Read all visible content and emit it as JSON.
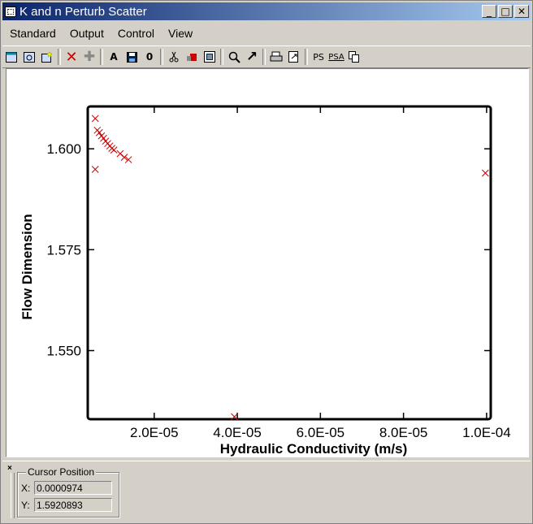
{
  "window": {
    "title": "K and n Perturb Scatter",
    "buttons": {
      "minimize": "_",
      "maximize": "□",
      "close": "✕"
    }
  },
  "menu": [
    "Standard",
    "Output",
    "Control",
    "View"
  ],
  "toolbar": {
    "tools": [
      {
        "name": "new-window-icon",
        "glyph": ""
      },
      {
        "name": "refresh-icon",
        "glyph": ""
      },
      {
        "name": "new-plot-icon",
        "glyph": ""
      },
      {
        "sep": true
      },
      {
        "name": "delete-icon",
        "glyph": "✕"
      },
      {
        "name": "add-icon",
        "glyph": "✚"
      },
      {
        "sep": true
      },
      {
        "name": "text-icon",
        "glyph": "A"
      },
      {
        "name": "save-icon",
        "glyph": ""
      },
      {
        "name": "zero-icon",
        "glyph": "0"
      },
      {
        "sep": true
      },
      {
        "name": "cut-icon",
        "glyph": ""
      },
      {
        "name": "erase-icon",
        "glyph": ""
      },
      {
        "name": "properties-icon",
        "glyph": ""
      },
      {
        "sep": true
      },
      {
        "name": "zoom-icon",
        "glyph": ""
      },
      {
        "name": "arrow-icon",
        "glyph": "↗"
      },
      {
        "sep": true
      },
      {
        "name": "print-icon",
        "glyph": ""
      },
      {
        "name": "export-icon",
        "glyph": ""
      },
      {
        "sep": true
      },
      {
        "name": "ps-icon",
        "glyph": "PS"
      },
      {
        "name": "psa-icon",
        "glyph": "PSA"
      },
      {
        "name": "copy-icon",
        "glyph": ""
      }
    ]
  },
  "colors": {
    "marker": "#cc0000",
    "title_bar_start": "#0a246a",
    "title_bar_end": "#a6caf0"
  },
  "chart_data": {
    "type": "scatter",
    "title": "",
    "xlabel": "Hydraulic  Conductivity  (m/s)",
    "ylabel": "Flow  Dimension",
    "xlim": [
      4e-06,
      0.000101
    ],
    "ylim": [
      1.533,
      1.6105
    ],
    "xticks": [
      {
        "value": 2e-05,
        "label": "2.0E-05"
      },
      {
        "value": 4e-05,
        "label": "4.0E-05"
      },
      {
        "value": 6e-05,
        "label": "6.0E-05"
      },
      {
        "value": 8e-05,
        "label": "8.0E-05"
      },
      {
        "value": 0.0001,
        "label": "1.0E-04"
      }
    ],
    "yticks": [
      {
        "value": 1.55,
        "label": "1.550"
      },
      {
        "value": 1.575,
        "label": "1.575"
      },
      {
        "value": 1.6,
        "label": "1.600"
      }
    ],
    "grid": false,
    "marker": "x",
    "points": [
      {
        "x": 5.8e-06,
        "y": 1.6075
      },
      {
        "x": 6.3e-06,
        "y": 1.6046
      },
      {
        "x": 6.8e-06,
        "y": 1.604
      },
      {
        "x": 7.3e-06,
        "y": 1.6032
      },
      {
        "x": 7.8e-06,
        "y": 1.6026
      },
      {
        "x": 8.3e-06,
        "y": 1.6019
      },
      {
        "x": 8.8e-06,
        "y": 1.6013
      },
      {
        "x": 9.3e-06,
        "y": 1.6007
      },
      {
        "x": 9.8e-06,
        "y": 1.6001
      },
      {
        "x": 1.03e-05,
        "y": 1.5997
      },
      {
        "x": 1.18e-05,
        "y": 1.5988
      },
      {
        "x": 1.28e-05,
        "y": 1.5979
      },
      {
        "x": 1.38e-05,
        "y": 1.5973
      },
      {
        "x": 5.8e-06,
        "y": 1.5949
      },
      {
        "x": 3.93e-05,
        "y": 1.5336
      },
      {
        "x": 9.97e-05,
        "y": 1.594
      }
    ]
  },
  "cursor": {
    "legend": "Cursor Position",
    "x_label": "X:",
    "x_value": "0.0000974",
    "y_label": "Y:",
    "y_value": "1.5920893"
  },
  "panel": {
    "close_glyph": "×"
  }
}
